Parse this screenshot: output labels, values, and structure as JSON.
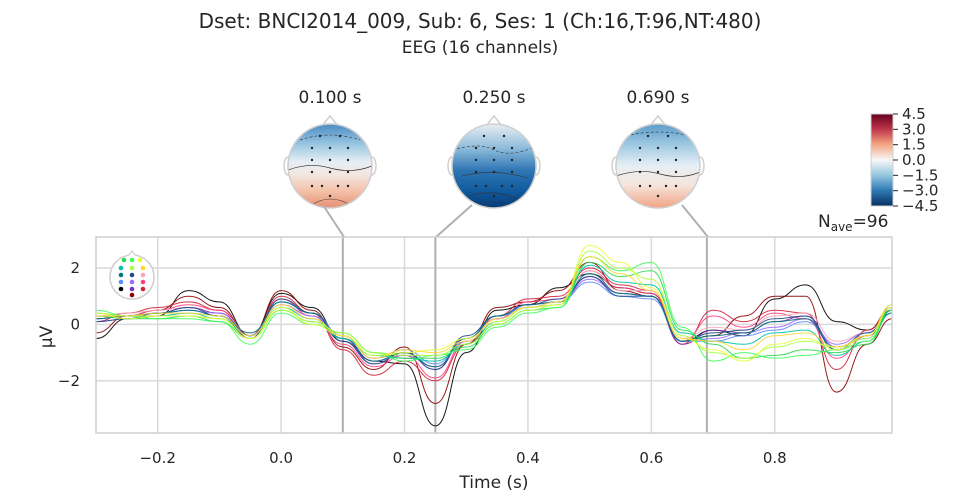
{
  "figure": {
    "title": "Dset: BNCI2014_009, Sub: 6, Ses: 1 (Ch:16,T:96,NT:480)",
    "subtitle": "EEG (16 channels)",
    "nave_base": "N",
    "nave_sub": "ave",
    "nave_value": "=96"
  },
  "colorbar": {
    "ticks": [
      "4.5",
      "3.0",
      "1.5",
      "0.0",
      "−1.5",
      "−3.0",
      "−4.5"
    ],
    "tick_values": [
      4.5,
      3.0,
      1.5,
      0.0,
      -1.5,
      -3.0,
      -4.5
    ],
    "colormap": "RdBu_r"
  },
  "topomaps": [
    {
      "time_label": "0.100 s",
      "time": 0.1,
      "pattern": "frontal-negative, posterior-positive"
    },
    {
      "time_label": "0.250 s",
      "time": 0.25,
      "pattern": "strong posterior-negative"
    },
    {
      "time_label": "0.690 s",
      "time": 0.69,
      "pattern": "frontal-negative, posterior-positive"
    }
  ],
  "chart_data": {
    "type": "line",
    "title": "Dset: BNCI2014_009, Sub: 6, Ses: 1 (Ch:16,T:96,NT:480)",
    "subtitle": "EEG (16 channels)",
    "xlabel": "Time (s)",
    "ylabel": "µV",
    "xlim": [
      -0.3,
      0.99
    ],
    "ylim": [
      -3.85,
      3.1
    ],
    "xticks": [
      -0.2,
      0.0,
      0.2,
      0.4,
      0.6,
      0.8
    ],
    "xtick_labels": [
      "−0.2",
      "0.0",
      "0.2",
      "0.4",
      "0.6",
      "0.8"
    ],
    "yticks": [
      -2,
      0,
      2
    ],
    "ytick_labels": [
      "−2",
      "0",
      "2"
    ],
    "grid": true,
    "vlines": [
      0.1,
      0.25,
      0.69
    ],
    "x": [
      -0.3,
      -0.25,
      -0.2,
      -0.15,
      -0.1,
      -0.05,
      0.0,
      0.05,
      0.1,
      0.15,
      0.2,
      0.25,
      0.3,
      0.35,
      0.4,
      0.45,
      0.5,
      0.55,
      0.6,
      0.65,
      0.7,
      0.75,
      0.8,
      0.85,
      0.9,
      0.95,
      0.99
    ],
    "series": [
      {
        "color": "#000000",
        "values": [
          -0.5,
          0.2,
          0.3,
          1.2,
          0.8,
          -0.4,
          1.1,
          0.6,
          -0.6,
          -1.3,
          -1.4,
          -3.6,
          -1.0,
          0.5,
          0.7,
          1.3,
          1.8,
          1.3,
          1.1,
          -0.6,
          -0.2,
          -0.4,
          0.9,
          1.4,
          0.1,
          -0.2,
          0.5
        ]
      },
      {
        "color": "#8b0000",
        "values": [
          -0.3,
          0.3,
          0.5,
          1.0,
          0.6,
          -0.4,
          1.2,
          0.5,
          -0.8,
          -1.6,
          -0.8,
          -2.8,
          -0.7,
          0.6,
          0.8,
          1.2,
          2.2,
          1.2,
          1.0,
          -0.6,
          -0.4,
          0.3,
          1.0,
          1.0,
          -2.4,
          -0.7,
          0.2
        ]
      },
      {
        "color": "#d6213a",
        "values": [
          0.1,
          0.4,
          0.6,
          0.8,
          0.5,
          -0.5,
          1.0,
          0.4,
          -0.9,
          -1.8,
          -1.3,
          -2.0,
          -0.7,
          0.3,
          0.9,
          1.0,
          2.0,
          1.4,
          1.2,
          -0.7,
          0.5,
          0.1,
          0.5,
          0.4,
          -1.6,
          -0.2,
          0.6
        ]
      },
      {
        "color": "#ff3d7f",
        "values": [
          0.2,
          0.3,
          0.5,
          0.7,
          0.5,
          -0.4,
          0.9,
          0.3,
          -0.7,
          -1.5,
          -1.1,
          -1.9,
          -0.6,
          0.2,
          0.8,
          0.9,
          1.9,
          1.3,
          1.1,
          -0.6,
          0.3,
          -0.1,
          0.4,
          0.2,
          -1.2,
          -0.4,
          0.5
        ]
      },
      {
        "color": "#f7a8b8",
        "values": [
          0.3,
          0.4,
          0.5,
          0.6,
          0.4,
          -0.3,
          0.7,
          0.3,
          -0.4,
          -1.2,
          -1.0,
          -1.5,
          -0.6,
          0.2,
          0.7,
          0.9,
          1.9,
          1.2,
          1.2,
          -0.5,
          -0.1,
          -0.2,
          0.3,
          0.4,
          -0.6,
          -0.3,
          0.4
        ]
      },
      {
        "color": "#7b2fbe",
        "values": [
          0.2,
          0.3,
          0.4,
          0.6,
          0.4,
          -0.4,
          0.8,
          0.4,
          -0.5,
          -1.4,
          -1.0,
          -1.6,
          -0.5,
          0.2,
          0.7,
          0.8,
          1.7,
          1.1,
          1.0,
          -0.7,
          -0.2,
          -0.3,
          0.1,
          0.3,
          -0.8,
          -0.4,
          0.4
        ]
      },
      {
        "color": "#9b6bff",
        "values": [
          0.1,
          0.2,
          0.4,
          0.5,
          0.4,
          -0.4,
          0.7,
          0.3,
          -0.5,
          -1.3,
          -1.1,
          -1.5,
          -0.6,
          0.2,
          0.7,
          0.8,
          1.6,
          1.1,
          1.0,
          -0.6,
          -0.5,
          -0.3,
          -0.1,
          0.2,
          -0.7,
          -0.3,
          0.5
        ]
      },
      {
        "color": "#5c8cff",
        "values": [
          0.2,
          0.3,
          0.4,
          0.5,
          0.3,
          -0.4,
          0.8,
          0.4,
          -0.4,
          -1.2,
          -0.9,
          -1.4,
          -0.5,
          0.3,
          0.6,
          0.8,
          1.5,
          1.0,
          0.9,
          -0.6,
          -0.6,
          -0.4,
          -0.2,
          0.1,
          -0.8,
          -0.5,
          0.7
        ]
      },
      {
        "color": "#1f4e8c",
        "values": [
          0.1,
          0.2,
          0.4,
          0.6,
          0.3,
          -0.5,
          0.9,
          0.4,
          -0.6,
          -1.4,
          -1.0,
          -1.6,
          -0.4,
          0.3,
          0.7,
          0.9,
          1.7,
          1.0,
          1.0,
          -0.6,
          -0.3,
          -0.2,
          0.2,
          0.3,
          -0.9,
          -0.3,
          0.4
        ]
      },
      {
        "color": "#00757a",
        "values": [
          0.2,
          0.3,
          0.4,
          0.5,
          0.3,
          -0.3,
          0.8,
          0.4,
          -0.5,
          -1.3,
          -1.0,
          -1.5,
          -0.5,
          0.3,
          0.7,
          0.8,
          1.8,
          1.1,
          1.0,
          -0.6,
          -0.4,
          -0.3,
          0.1,
          0.2,
          -0.9,
          -0.4,
          0.5
        ]
      },
      {
        "color": "#00c2a8",
        "values": [
          0.4,
          0.3,
          0.3,
          0.4,
          0.2,
          -0.4,
          0.6,
          0.2,
          -0.5,
          -1.1,
          -1.2,
          -1.3,
          -0.7,
          0.1,
          0.6,
          0.7,
          2.1,
          1.5,
          1.4,
          -0.3,
          -0.6,
          -0.7,
          -0.3,
          -0.2,
          -1.1,
          -0.6,
          0.4
        ]
      },
      {
        "color": "#2ad94f",
        "values": [
          0.3,
          0.2,
          0.2,
          0.3,
          0.1,
          -0.5,
          0.5,
          0.1,
          -0.3,
          -1.0,
          -1.2,
          -1.2,
          -0.8,
          0.0,
          0.5,
          0.6,
          2.2,
          1.7,
          1.9,
          -0.2,
          -0.7,
          -1.2,
          -1.1,
          -0.9,
          -1.0,
          -0.7,
          0.5
        ]
      },
      {
        "color": "#3cff5a",
        "values": [
          0.5,
          0.3,
          0.2,
          0.2,
          0.1,
          -0.7,
          0.4,
          0.0,
          -0.3,
          -1.0,
          -1.3,
          -1.1,
          -0.9,
          -0.1,
          0.4,
          0.6,
          2.4,
          1.9,
          2.2,
          -0.1,
          -1.3,
          -1.0,
          -1.2,
          -1.1,
          -0.9,
          -0.6,
          0.6
        ]
      },
      {
        "color": "#a8ff3c",
        "values": [
          0.4,
          0.3,
          0.3,
          0.3,
          0.2,
          -0.5,
          0.5,
          0.1,
          -0.3,
          -1.0,
          -1.1,
          -1.1,
          -0.7,
          0.0,
          0.5,
          0.7,
          2.6,
          2.0,
          1.6,
          -0.4,
          -1.0,
          -1.2,
          -0.8,
          -0.6,
          -0.8,
          -0.5,
          0.6
        ]
      },
      {
        "color": "#e6ff33",
        "values": [
          0.4,
          0.2,
          0.3,
          0.3,
          0.2,
          -0.5,
          0.6,
          0.0,
          -0.4,
          -1.1,
          -1.0,
          -0.9,
          -0.5,
          0.1,
          0.6,
          0.7,
          2.8,
          2.2,
          1.3,
          -0.5,
          -0.9,
          -1.3,
          -0.7,
          -0.5,
          -0.9,
          -0.4,
          0.7
        ]
      },
      {
        "color": "#ffd633",
        "values": [
          0.3,
          0.3,
          0.4,
          0.4,
          0.3,
          -0.4,
          0.7,
          0.2,
          -0.4,
          -1.2,
          -0.9,
          -1.0,
          -0.6,
          0.2,
          0.6,
          0.8,
          2.4,
          1.8,
          1.2,
          -0.5,
          -0.6,
          -0.9,
          -0.4,
          -0.3,
          -0.8,
          -0.4,
          0.6
        ]
      }
    ]
  }
}
